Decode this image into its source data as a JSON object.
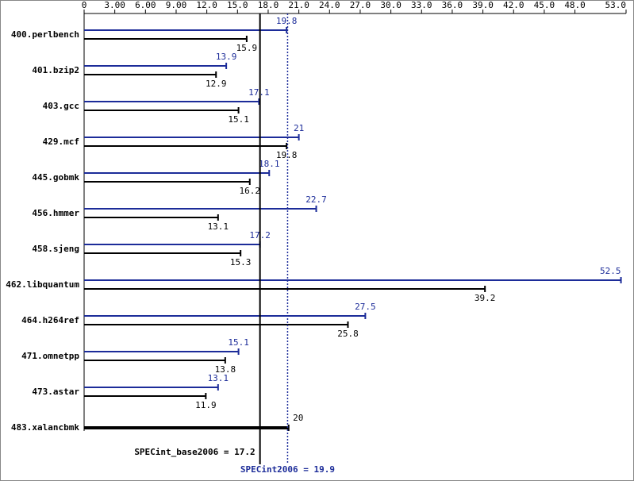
{
  "chart_data": {
    "type": "bar",
    "orientation": "horizontal",
    "categories": [
      "400.perlbench",
      "401.bzip2",
      "403.gcc",
      "429.mcf",
      "445.gobmk",
      "456.hmmer",
      "458.sjeng",
      "462.libquantum",
      "464.h264ref",
      "471.omnetpp",
      "473.astar",
      "483.xalancbmk"
    ],
    "series": [
      {
        "name": "SPECint2006",
        "color": "#1c2c99",
        "values": [
          19.8,
          13.9,
          17.1,
          21.0,
          18.1,
          22.7,
          17.2,
          52.5,
          27.5,
          15.1,
          13.1,
          null
        ]
      },
      {
        "name": "SPECint_base2006",
        "color": "#000000",
        "values": [
          15.9,
          12.9,
          15.1,
          19.8,
          16.2,
          13.1,
          15.3,
          39.2,
          25.8,
          13.8,
          11.9,
          20.0
        ]
      }
    ],
    "xlim": [
      0,
      53
    ],
    "xticks": [
      0,
      {
        "value": 3,
        "label": "3.00"
      },
      {
        "value": 6,
        "label": "6.00"
      },
      {
        "value": 9,
        "label": "9.00"
      },
      {
        "value": 12,
        "label": "12.0"
      },
      {
        "value": 15,
        "label": "15.0"
      },
      {
        "value": 18,
        "label": "18.0"
      },
      {
        "value": 21,
        "label": "21.0"
      },
      {
        "value": 24,
        "label": "24.0"
      },
      {
        "value": 27,
        "label": "27.0"
      },
      {
        "value": 30,
        "label": "30.0"
      },
      {
        "value": 33,
        "label": "33.0"
      },
      {
        "value": 36,
        "label": "36.0"
      },
      {
        "value": 39,
        "label": "39.0"
      },
      {
        "value": 42,
        "label": "42.0"
      },
      {
        "value": 45,
        "label": "45.0"
      },
      {
        "value": 48,
        "label": "48.0"
      },
      {
        "value": 53,
        "label": "53.0"
      }
    ],
    "reference_lines": [
      {
        "label": "SPECint_base2006 = 17.2",
        "value": 17.2,
        "color": "#000000",
        "style": "solid"
      },
      {
        "label": "SPECint2006 = 19.9",
        "value": 19.9,
        "color": "#1c2c99",
        "style": "dotted"
      }
    ]
  }
}
